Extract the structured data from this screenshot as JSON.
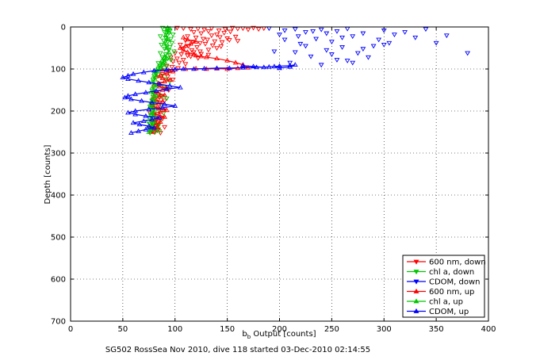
{
  "chart_data": {
    "type": "scatter",
    "title": "",
    "caption": "SG502 RossSea Nov 2010, dive 118 started 03-Dec-2010 02:14:55",
    "xlabel_main": "b",
    "xlabel_sub": "b",
    "xlabel_rest": " Output [counts]",
    "ylabel": "Depth [counts]",
    "xlim": [
      0,
      400
    ],
    "ylim": [
      700,
      0
    ],
    "y_reversed": true,
    "grid": true,
    "legend_position": "bottom-right",
    "xticks": [
      "0",
      "50",
      "100",
      "150",
      "200",
      "250",
      "300",
      "350",
      "400"
    ],
    "yticks": [
      "0",
      "100",
      "200",
      "300",
      "400",
      "500",
      "600",
      "700"
    ],
    "series": [
      {
        "name": "600 nm, down",
        "color": "#ff0000",
        "marker": "tri-down",
        "mode": "markers",
        "x": [
          102,
          108,
          115,
          122,
          128,
          135,
          142,
          148,
          155,
          160,
          165,
          170,
          175,
          180,
          185,
          118,
          125,
          132,
          140,
          147,
          153,
          112,
          120,
          127,
          135,
          143,
          150,
          158,
          110,
          117,
          124,
          131,
          138,
          145,
          152,
          160,
          105,
          113,
          121,
          129,
          136,
          144,
          108,
          116,
          124,
          132,
          140,
          100,
          106,
          112,
          118,
          125,
          132,
          96,
          102,
          108,
          115,
          122,
          98,
          104,
          110,
          92,
          97,
          103,
          88,
          93,
          98,
          85,
          90,
          94,
          80,
          85,
          90,
          78,
          84,
          89,
          76,
          82,
          88,
          78,
          84,
          90,
          76,
          83,
          80,
          86,
          78,
          84
        ],
        "y": [
          2,
          3,
          5,
          4,
          6,
          3,
          8,
          5,
          2,
          4,
          3,
          6,
          2,
          5,
          3,
          12,
          15,
          10,
          18,
          14,
          11,
          22,
          25,
          28,
          20,
          24,
          27,
          23,
          32,
          35,
          38,
          30,
          34,
          36,
          31,
          33,
          42,
          45,
          48,
          40,
          44,
          46,
          52,
          55,
          58,
          54,
          50,
          62,
          65,
          68,
          60,
          64,
          66,
          72,
          75,
          78,
          70,
          74,
          82,
          85,
          88,
          92,
          95,
          98,
          112,
          118,
          125,
          135,
          142,
          150,
          160,
          168,
          175,
          185,
          192,
          198,
          205,
          212,
          218,
          225,
          232,
          238,
          242,
          246,
          250,
          252,
          248,
          244
        ]
      },
      {
        "name": "chl a, down",
        "color": "#00c800",
        "marker": "tri-down",
        "mode": "markers",
        "x": [
          88,
          92,
          95,
          90,
          94,
          98,
          86,
          91,
          96,
          89,
          93,
          97,
          87,
          92,
          95,
          90,
          94,
          99,
          86,
          91,
          95,
          88,
          93,
          96,
          90,
          84,
          88,
          92,
          86,
          90,
          94,
          82,
          87,
          91,
          95,
          85,
          89,
          93,
          80,
          84,
          88,
          92,
          78,
          83,
          87,
          76,
          80,
          85,
          89,
          77,
          81,
          86,
          74,
          79,
          84,
          75,
          80,
          85,
          76,
          81,
          77,
          82,
          78,
          83,
          76,
          81
        ],
        "y": [
          2,
          5,
          8,
          12,
          15,
          18,
          22,
          25,
          28,
          32,
          35,
          38,
          42,
          45,
          48,
          52,
          55,
          58,
          62,
          65,
          68,
          72,
          75,
          78,
          82,
          86,
          90,
          94,
          98,
          102,
          106,
          112,
          118,
          124,
          130,
          136,
          142,
          148,
          155,
          160,
          165,
          170,
          175,
          180,
          185,
          190,
          195,
          200,
          205,
          210,
          215,
          220,
          225,
          230,
          235,
          240,
          244,
          248,
          252,
          250,
          246,
          242,
          238,
          234,
          230,
          226
        ]
      },
      {
        "name": "CDOM, down",
        "color": "#0000ff",
        "marker": "tri-down",
        "mode": "markers",
        "x": [
          190,
          205,
          215,
          225,
          240,
          255,
          265,
          280,
          300,
          320,
          340,
          360,
          380,
          350,
          330,
          310,
          295,
          270,
          250,
          235,
          220,
          200,
          245,
          260,
          275,
          290,
          305,
          230,
          215,
          265,
          285,
          210,
          240,
          255,
          270,
          195,
          225,
          250,
          280,
          300,
          260,
          245,
          232,
          218,
          205
        ],
        "y": [
          3,
          8,
          5,
          12,
          6,
          10,
          4,
          15,
          8,
          12,
          5,
          20,
          62,
          38,
          25,
          18,
          30,
          22,
          35,
          28,
          40,
          18,
          55,
          48,
          62,
          45,
          38,
          70,
          60,
          80,
          72,
          85,
          90,
          78,
          85,
          58,
          45,
          65,
          52,
          42,
          25,
          15,
          10,
          22,
          30
        ]
      },
      {
        "name": "600 nm, up",
        "color": "#ff0000",
        "marker": "tri-up",
        "mode": "line+markers",
        "x": [
          77,
          80,
          79,
          83,
          78,
          82,
          86,
          80,
          84,
          90,
          85,
          80,
          86,
          92,
          84,
          80,
          78,
          84,
          88,
          82,
          79,
          85,
          90,
          84,
          80,
          88,
          92,
          85,
          80,
          84,
          90,
          95,
          88,
          82,
          86,
          92,
          98,
          94,
          88,
          100,
          110,
          120,
          130,
          140,
          150,
          160,
          170,
          165,
          158,
          150,
          140,
          130,
          125,
          120,
          118,
          112,
          108,
          105,
          110,
          115,
          120,
          112,
          108
        ],
        "y": [
          250,
          246,
          242,
          238,
          234,
          230,
          226,
          222,
          218,
          214,
          210,
          206,
          202,
          198,
          194,
          190,
          186,
          182,
          178,
          174,
          170,
          166,
          162,
          158,
          154,
          150,
          146,
          142,
          138,
          134,
          130,
          126,
          122,
          118,
          114,
          110,
          106,
          103,
          102,
          101,
          100,
          99,
          100,
          99,
          100,
          98,
          97,
          90,
          85,
          80,
          75,
          72,
          70,
          68,
          65,
          60,
          55,
          50,
          45,
          40,
          35,
          30,
          25
        ]
      },
      {
        "name": "chl a, up",
        "color": "#00c800",
        "marker": "tri-up",
        "mode": "line+markers",
        "x": [
          75,
          78,
          76,
          79,
          77,
          80,
          78,
          76,
          79,
          77,
          80,
          78,
          76,
          79,
          77,
          80,
          78,
          82,
          79,
          77,
          80,
          78,
          82,
          80,
          78,
          81,
          79,
          82,
          80,
          84,
          82,
          86,
          84,
          88,
          86,
          90,
          88,
          92,
          90,
          94,
          92,
          90,
          93,
          91,
          94,
          92,
          95,
          93
        ],
        "y": [
          250,
          245,
          240,
          235,
          230,
          225,
          220,
          215,
          210,
          205,
          200,
          195,
          190,
          185,
          180,
          175,
          170,
          165,
          160,
          155,
          150,
          145,
          140,
          135,
          130,
          125,
          120,
          115,
          110,
          106,
          102,
          98,
          94,
          90,
          86,
          82,
          78,
          74,
          70,
          60,
          50,
          40,
          30,
          20,
          12,
          8,
          4,
          2
        ]
      },
      {
        "name": "CDOM, up",
        "color": "#0000ff",
        "marker": "tri-up",
        "mode": "line+markers",
        "x": [
          58,
          65,
          72,
          80,
          75,
          66,
          60,
          70,
          78,
          85,
          72,
          62,
          55,
          62,
          75,
          88,
          100,
          90,
          78,
          68,
          58,
          52,
          55,
          62,
          72,
          82,
          92,
          105,
          95,
          85,
          75,
          65,
          55,
          50,
          55,
          60,
          70,
          80,
          92,
          100,
          108,
          118,
          128,
          140,
          152,
          165,
          178,
          190,
          200,
          210,
          215,
          210,
          200,
          195,
          185,
          175,
          165
        ],
        "y": [
          252,
          248,
          244,
          240,
          236,
          232,
          228,
          224,
          220,
          216,
          212,
          208,
          204,
          200,
          196,
          192,
          188,
          184,
          180,
          176,
          172,
          168,
          164,
          160,
          156,
          152,
          148,
          144,
          140,
          136,
          132,
          128,
          124,
          120,
          116,
          112,
          108,
          104,
          102,
          101,
          100,
          100,
          99,
          98,
          98,
          97,
          96,
          95,
          93,
          92,
          90,
          95,
          98,
          94,
          96,
          94,
          92
        ]
      }
    ]
  }
}
